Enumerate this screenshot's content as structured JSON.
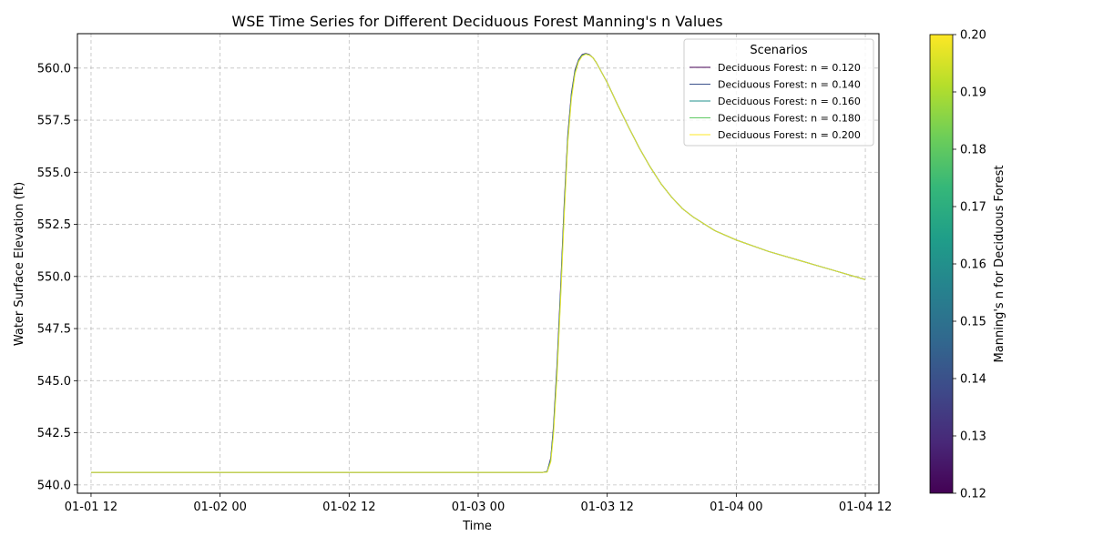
{
  "chart_data": {
    "type": "line",
    "title": "WSE Time Series for Different Deciduous Forest Manning's n Values",
    "xlabel": "Time",
    "ylabel": "Water Surface Elevation (ft)",
    "xlim": [
      "2024-01-01T10:44",
      "2024-01-04T13:16"
    ],
    "ylim": [
      539.6,
      561.65
    ],
    "x_ticks": [
      "2024-01-01T12:00",
      "2024-01-02T00:00",
      "2024-01-02T12:00",
      "2024-01-03T00:00",
      "2024-01-03T12:00",
      "2024-01-04T00:00",
      "2024-01-04T12:00"
    ],
    "x_tick_labels": [
      "01-01 12",
      "01-02 00",
      "01-02 12",
      "01-03 00",
      "01-03 12",
      "01-04 00",
      "01-04 12"
    ],
    "y_ticks": [
      540.0,
      542.5,
      545.0,
      547.5,
      550.0,
      552.5,
      555.0,
      557.5,
      560.0
    ],
    "y_tick_labels": [
      "540.0",
      "542.5",
      "545.0",
      "547.5",
      "550.0",
      "552.5",
      "555.0",
      "557.5",
      "560.0"
    ],
    "grid": true,
    "legend": {
      "title": "Scenarios",
      "placement": "top-right"
    },
    "series": [
      {
        "name": "Deciduous Forest: n = 0.120",
        "color": "#440154",
        "x": [
          "2024-01-01T12:00",
          "2024-01-03T06:00",
          "2024-01-03T06:25",
          "2024-01-03T06:45",
          "2024-01-03T07:00",
          "2024-01-03T07:20",
          "2024-01-03T07:40",
          "2024-01-03T08:00",
          "2024-01-03T08:20",
          "2024-01-03T08:40",
          "2024-01-03T09:00",
          "2024-01-03T09:20",
          "2024-01-03T09:40",
          "2024-01-03T10:00",
          "2024-01-03T10:20",
          "2024-01-03T10:40",
          "2024-01-03T11:00",
          "2024-01-03T12:00",
          "2024-01-03T13:00",
          "2024-01-03T14:00",
          "2024-01-03T15:00",
          "2024-01-03T16:00",
          "2024-01-03T17:00",
          "2024-01-03T18:00",
          "2024-01-03T19:00",
          "2024-01-03T20:00",
          "2024-01-03T22:00",
          "2024-01-04T00:00",
          "2024-01-04T03:00",
          "2024-01-04T06:00",
          "2024-01-04T09:00",
          "2024-01-04T12:00"
        ],
        "values": [
          540.6,
          540.6,
          540.65,
          541.3,
          542.8,
          545.8,
          549.5,
          553.5,
          556.8,
          558.8,
          559.9,
          560.4,
          560.65,
          560.7,
          560.65,
          560.5,
          560.25,
          559.3,
          558.2,
          557.15,
          556.15,
          555.25,
          554.45,
          553.8,
          553.25,
          552.85,
          552.2,
          551.75,
          551.2,
          550.75,
          550.3,
          549.85
        ]
      },
      {
        "name": "Deciduous Forest: n = 0.140",
        "color": "#3b528b",
        "x": [
          "2024-01-01T12:00",
          "2024-01-03T06:00",
          "2024-01-03T06:25",
          "2024-01-03T06:45",
          "2024-01-03T07:00",
          "2024-01-03T07:20",
          "2024-01-03T07:40",
          "2024-01-03T08:00",
          "2024-01-03T08:20",
          "2024-01-03T08:40",
          "2024-01-03T09:00",
          "2024-01-03T09:20",
          "2024-01-03T09:40",
          "2024-01-03T10:00",
          "2024-01-03T10:20",
          "2024-01-03T10:40",
          "2024-01-03T11:00",
          "2024-01-03T12:00",
          "2024-01-03T13:00",
          "2024-01-03T14:00",
          "2024-01-03T15:00",
          "2024-01-03T16:00",
          "2024-01-03T17:00",
          "2024-01-03T18:00",
          "2024-01-03T19:00",
          "2024-01-03T20:00",
          "2024-01-03T22:00",
          "2024-01-04T00:00",
          "2024-01-04T03:00",
          "2024-01-04T06:00",
          "2024-01-04T09:00",
          "2024-01-04T12:00"
        ],
        "values": [
          540.6,
          540.6,
          540.64,
          541.25,
          542.7,
          545.65,
          549.35,
          553.35,
          556.7,
          558.72,
          559.85,
          560.38,
          560.63,
          560.69,
          560.64,
          560.5,
          560.25,
          559.3,
          558.2,
          557.15,
          556.15,
          555.25,
          554.45,
          553.8,
          553.25,
          552.85,
          552.2,
          551.75,
          551.2,
          550.75,
          550.3,
          549.85
        ]
      },
      {
        "name": "Deciduous Forest: n = 0.160",
        "color": "#21918c",
        "x": [
          "2024-01-01T12:00",
          "2024-01-03T06:00",
          "2024-01-03T06:25",
          "2024-01-03T06:45",
          "2024-01-03T07:00",
          "2024-01-03T07:20",
          "2024-01-03T07:40",
          "2024-01-03T08:00",
          "2024-01-03T08:20",
          "2024-01-03T08:40",
          "2024-01-03T09:00",
          "2024-01-03T09:20",
          "2024-01-03T09:40",
          "2024-01-03T10:00",
          "2024-01-03T10:20",
          "2024-01-03T10:40",
          "2024-01-03T11:00",
          "2024-01-03T12:00",
          "2024-01-03T13:00",
          "2024-01-03T14:00",
          "2024-01-03T15:00",
          "2024-01-03T16:00",
          "2024-01-03T17:00",
          "2024-01-03T18:00",
          "2024-01-03T19:00",
          "2024-01-03T20:00",
          "2024-01-03T22:00",
          "2024-01-04T00:00",
          "2024-01-04T03:00",
          "2024-01-04T06:00",
          "2024-01-04T09:00",
          "2024-01-04T12:00"
        ],
        "values": [
          540.6,
          540.6,
          540.63,
          541.2,
          542.6,
          545.5,
          549.2,
          553.2,
          556.6,
          558.65,
          559.8,
          560.35,
          560.61,
          560.68,
          560.63,
          560.5,
          560.25,
          559.3,
          558.2,
          557.15,
          556.15,
          555.25,
          554.45,
          553.8,
          553.25,
          552.85,
          552.2,
          551.75,
          551.2,
          550.75,
          550.3,
          549.85
        ]
      },
      {
        "name": "Deciduous Forest: n = 0.180",
        "color": "#5ec962",
        "x": [
          "2024-01-01T12:00",
          "2024-01-03T06:00",
          "2024-01-03T06:25",
          "2024-01-03T06:45",
          "2024-01-03T07:00",
          "2024-01-03T07:20",
          "2024-01-03T07:40",
          "2024-01-03T08:00",
          "2024-01-03T08:20",
          "2024-01-03T08:40",
          "2024-01-03T09:00",
          "2024-01-03T09:20",
          "2024-01-03T09:40",
          "2024-01-03T10:00",
          "2024-01-03T10:20",
          "2024-01-03T10:40",
          "2024-01-03T11:00",
          "2024-01-03T12:00",
          "2024-01-03T13:00",
          "2024-01-03T14:00",
          "2024-01-03T15:00",
          "2024-01-03T16:00",
          "2024-01-03T17:00",
          "2024-01-03T18:00",
          "2024-01-03T19:00",
          "2024-01-03T20:00",
          "2024-01-03T22:00",
          "2024-01-04T00:00",
          "2024-01-04T03:00",
          "2024-01-04T06:00",
          "2024-01-04T09:00",
          "2024-01-04T12:00"
        ],
        "values": [
          540.6,
          540.6,
          540.62,
          541.15,
          542.5,
          545.35,
          549.05,
          553.05,
          556.5,
          558.58,
          559.75,
          560.32,
          560.59,
          560.67,
          560.62,
          560.5,
          560.25,
          559.3,
          558.2,
          557.15,
          556.15,
          555.25,
          554.45,
          553.8,
          553.25,
          552.85,
          552.2,
          551.75,
          551.2,
          550.75,
          550.3,
          549.85
        ]
      },
      {
        "name": "Deciduous Forest: n = 0.200",
        "color": "#fde725",
        "x": [
          "2024-01-01T12:00",
          "2024-01-03T06:00",
          "2024-01-03T06:25",
          "2024-01-03T06:45",
          "2024-01-03T07:00",
          "2024-01-03T07:20",
          "2024-01-03T07:40",
          "2024-01-03T08:00",
          "2024-01-03T08:20",
          "2024-01-03T08:40",
          "2024-01-03T09:00",
          "2024-01-03T09:20",
          "2024-01-03T09:40",
          "2024-01-03T10:00",
          "2024-01-03T10:20",
          "2024-01-03T10:40",
          "2024-01-03T11:00",
          "2024-01-03T12:00",
          "2024-01-03T13:00",
          "2024-01-03T14:00",
          "2024-01-03T15:00",
          "2024-01-03T16:00",
          "2024-01-03T17:00",
          "2024-01-03T18:00",
          "2024-01-03T19:00",
          "2024-01-03T20:00",
          "2024-01-03T22:00",
          "2024-01-04T00:00",
          "2024-01-04T03:00",
          "2024-01-04T06:00",
          "2024-01-04T09:00",
          "2024-01-04T12:00"
        ],
        "values": [
          540.6,
          540.6,
          540.61,
          541.1,
          542.4,
          545.2,
          548.9,
          552.9,
          556.4,
          558.5,
          559.7,
          560.3,
          560.57,
          560.66,
          560.62,
          560.5,
          560.25,
          559.3,
          558.2,
          557.15,
          556.15,
          555.25,
          554.45,
          553.8,
          553.25,
          552.85,
          552.2,
          551.75,
          551.2,
          550.75,
          550.3,
          549.85
        ]
      }
    ],
    "colorbar": {
      "label": "Manning's n for Deciduous Forest",
      "colormap": "viridis",
      "range": [
        0.12,
        0.2
      ],
      "ticks": [
        0.12,
        0.13,
        0.14,
        0.15,
        0.16,
        0.17,
        0.18,
        0.19,
        0.2
      ],
      "tick_labels": [
        "0.12",
        "0.13",
        "0.14",
        "0.15",
        "0.16",
        "0.17",
        "0.18",
        "0.19",
        "0.20"
      ],
      "stops": [
        "#440154",
        "#482878",
        "#3e4989",
        "#31688e",
        "#26828e",
        "#1f9e89",
        "#35b779",
        "#6ece58",
        "#b5de2b",
        "#fde725"
      ]
    }
  }
}
